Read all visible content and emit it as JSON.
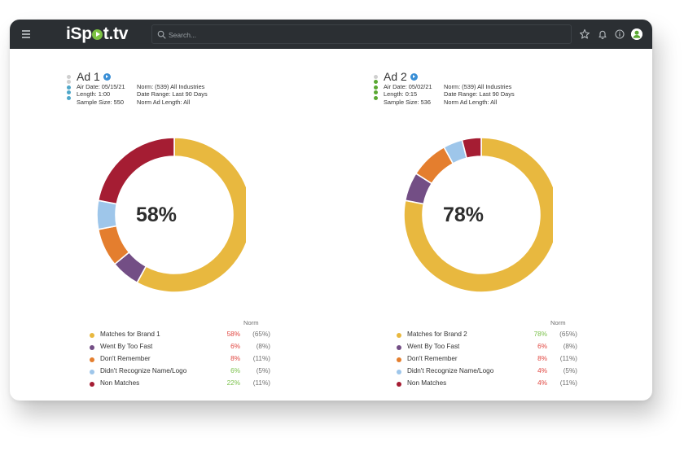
{
  "app": {
    "logo_text_left": "iSp",
    "logo_text_right": "t.tv",
    "search_placeholder": "Search...",
    "icons": [
      "menu-icon",
      "search-icon",
      "star-icon",
      "bell-icon",
      "info-icon",
      "user-avatar-icon"
    ]
  },
  "colors": {
    "topbar": "#2b2f33",
    "brand_green": "#7cc242",
    "below_norm": "#e0443e",
    "above_norm": "#7ac04a",
    "matches": "#e8b83f",
    "too_fast": "#734e85",
    "dont_remember": "#e47e2e",
    "didnt_recognize": "#9ec6ea",
    "non_matches": "#a51d33"
  },
  "ads": [
    {
      "title": "Ad 1",
      "status_dots": [
        "#cfcfcf",
        "#cfcfcf",
        "#4fa7c9",
        "#4fa7c9",
        "#4fa7c9"
      ],
      "meta_left": [
        "Air Date: 05/15/21",
        "Length: 1:00",
        "Sample Size: 550"
      ],
      "meta_right": [
        "Norm: (539) All Industries",
        "Date Range: Last 90 Days",
        "Norm Ad Length: All"
      ],
      "center_label": "58%",
      "norm_header": "Norm",
      "legend": [
        {
          "label": "Matches for Brand 1",
          "value": "58%",
          "norm": "(65%)",
          "status": "below"
        },
        {
          "label": "Went By Too Fast",
          "value": "6%",
          "norm": "(8%)",
          "status": "below"
        },
        {
          "label": "Don't Remember",
          "value": "8%",
          "norm": "(11%)",
          "status": "below"
        },
        {
          "label": "Didn't Recognize Name/Logo",
          "value": "6%",
          "norm": "(5%)",
          "status": "above"
        },
        {
          "label": "Non Matches",
          "value": "22%",
          "norm": "(11%)",
          "status": "above"
        }
      ]
    },
    {
      "title": "Ad 2",
      "status_dots": [
        "#cfcfcf",
        "#5aa832",
        "#5aa832",
        "#5aa832",
        "#5aa832"
      ],
      "meta_left": [
        "Air Date: 05/02/21",
        "Length: 0:15",
        "Sample Size: 536"
      ],
      "meta_right": [
        "Norm: (539) All Industries",
        "Date Range: Last 90 Days",
        "Norm Ad Length: All"
      ],
      "center_label": "78%",
      "norm_header": "Norm",
      "legend": [
        {
          "label": "Matches for Brand 2",
          "value": "78%",
          "norm": "(65%)",
          "status": "above"
        },
        {
          "label": "Went By Too Fast",
          "value": "6%",
          "norm": "(8%)",
          "status": "below"
        },
        {
          "label": "Don't Remember",
          "value": "8%",
          "norm": "(11%)",
          "status": "below"
        },
        {
          "label": "Didn't Recognize Name/Logo",
          "value": "4%",
          "norm": "(5%)",
          "status": "below"
        },
        {
          "label": "Non Matches",
          "value": "4%",
          "norm": "(11%)",
          "status": "below"
        }
      ]
    }
  ],
  "chart_data": [
    {
      "type": "pie",
      "variant": "donut",
      "title": "Ad 1",
      "center_label": "58%",
      "categories": [
        "Matches for Brand 1",
        "Went By Too Fast",
        "Don't Remember",
        "Didn't Recognize Name/Logo",
        "Non Matches"
      ],
      "values": [
        58,
        6,
        8,
        6,
        22
      ],
      "norm_values": [
        65,
        8,
        11,
        5,
        11
      ],
      "colors": [
        "#e8b83f",
        "#734e85",
        "#e47e2e",
        "#9ec6ea",
        "#a51d33"
      ],
      "start": "top",
      "direction": "clockwise",
      "legend_position": "bottom"
    },
    {
      "type": "pie",
      "variant": "donut",
      "title": "Ad 2",
      "center_label": "78%",
      "categories": [
        "Matches for Brand 2",
        "Went By Too Fast",
        "Don't Remember",
        "Didn't Recognize Name/Logo",
        "Non Matches"
      ],
      "values": [
        78,
        6,
        8,
        4,
        4
      ],
      "norm_values": [
        65,
        8,
        11,
        5,
        11
      ],
      "colors": [
        "#e8b83f",
        "#734e85",
        "#e47e2e",
        "#9ec6ea",
        "#a51d33"
      ],
      "start": "top",
      "direction": "clockwise",
      "legend_position": "bottom"
    }
  ]
}
